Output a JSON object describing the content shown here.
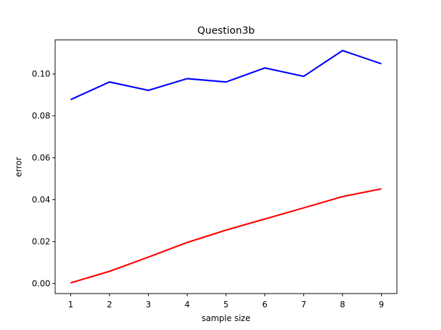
{
  "chart_data": {
    "type": "line",
    "title": "Question3b",
    "xlabel": "sample size",
    "ylabel": "error",
    "x": [
      1,
      2,
      3,
      4,
      5,
      6,
      7,
      8,
      9
    ],
    "xlim": [
      0.6,
      9.4
    ],
    "ylim": [
      -0.0048,
      0.1163
    ],
    "xticks": [
      1,
      2,
      3,
      4,
      5,
      6,
      7,
      8,
      9
    ],
    "yticks": [
      0.0,
      0.02,
      0.04,
      0.06,
      0.08,
      0.1
    ],
    "ytick_labels": [
      "0.00",
      "0.02",
      "0.04",
      "0.06",
      "0.08",
      "0.10"
    ],
    "grid": false,
    "series": [
      {
        "color": "#0000ff",
        "values": [
          0.0878,
          0.0962,
          0.0922,
          0.0978,
          0.0962,
          0.1029,
          0.0989,
          0.1112,
          0.1049
        ]
      },
      {
        "color": "#ff0000",
        "values": [
          0.0003,
          0.0058,
          0.0126,
          0.0196,
          0.0255,
          0.0308,
          0.0361,
          0.0415,
          0.0452
        ]
      }
    ]
  }
}
